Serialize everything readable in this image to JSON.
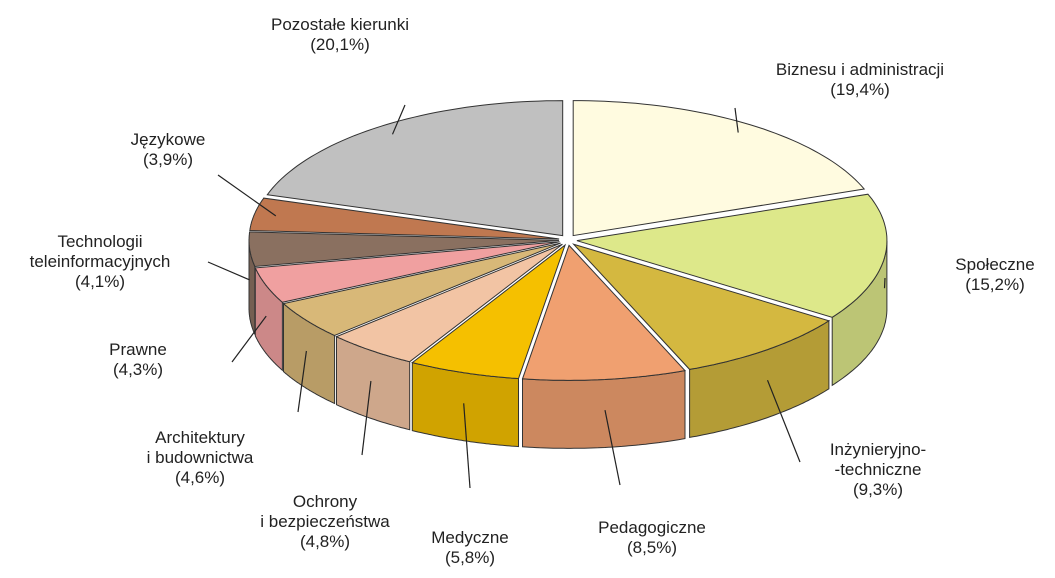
{
  "chart_data": {
    "type": "pie3d",
    "categories": [
      "Biznesu i administracji",
      "Społeczne",
      "Inżynieryjno-\n-techniczne",
      "Pedagogiczne",
      "Medyczne",
      "Ochrony\ni bezpieczeństwa",
      "Architektury\ni budownictwa",
      "Prawne",
      "Technologii\nteleinformacyjnych",
      "Językowe",
      "Pozostałe kierunki"
    ],
    "values": [
      19.4,
      15.2,
      9.3,
      8.5,
      5.8,
      4.8,
      4.6,
      4.3,
      4.1,
      3.9,
      20.1
    ],
    "value_labels": [
      "(19,4%)",
      "(15,2%)",
      "(9,3%)",
      "(8,5%)",
      "(5,8%)",
      "(4,8%)",
      "(4,6%)",
      "(4,3%)",
      "(4,1%)",
      "(3,9%)",
      "(20,1%)"
    ],
    "colors": [
      "#fffbe0",
      "#dde88a",
      "#d4b840",
      "#f0a070",
      "#f5c000",
      "#f2c4a4",
      "#d8b878",
      "#f0a0a0",
      "#8a7060",
      "#c07850",
      "#c0c0c0"
    ]
  }
}
